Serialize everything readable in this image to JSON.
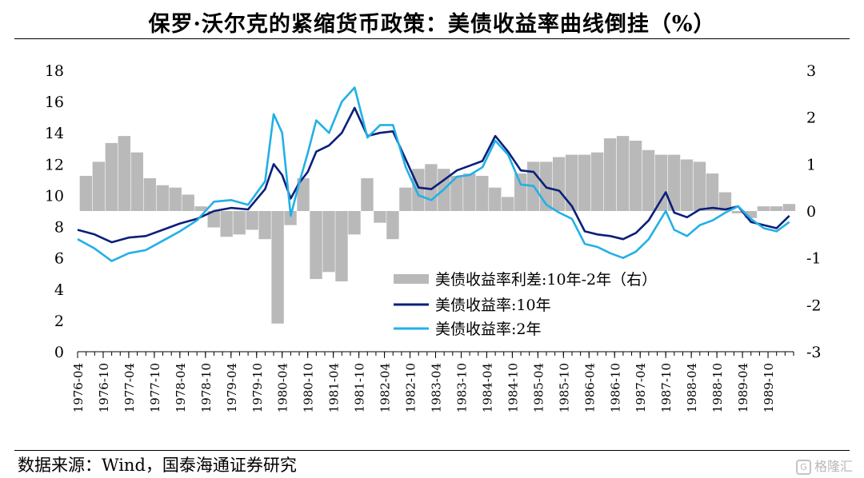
{
  "title": "保罗·沃尔克的紧缩货币政策：美债收益率曲线倒挂（%）",
  "source": "数据来源：Wind，国泰海通证券研究",
  "watermark": "格隆汇",
  "chart_data": {
    "type": "line",
    "x_start": "1976-04",
    "x_end": "1990-04",
    "x_tick_labels": [
      "1976-04",
      "1976-10",
      "1977-04",
      "1977-10",
      "1978-04",
      "1978-10",
      "1979-04",
      "1979-10",
      "1980-04",
      "1980-10",
      "1981-04",
      "1981-10",
      "1982-04",
      "1982-10",
      "1983-04",
      "1983-10",
      "1984-04",
      "1984-10",
      "1985-04",
      "1985-10",
      "1986-04",
      "1986-10",
      "1987-04",
      "1987-10",
      "1988-04",
      "1988-10",
      "1989-04",
      "1989-10"
    ],
    "y_left": {
      "ticks": [
        0,
        2,
        4,
        6,
        8,
        10,
        12,
        14,
        16,
        18
      ],
      "lim": [
        0,
        18
      ]
    },
    "y_right": {
      "ticks": [
        3,
        2,
        1,
        0,
        -1,
        -2,
        -3
      ],
      "lim": [
        -3,
        3
      ]
    },
    "legend_position": "bottom-center",
    "series": [
      {
        "name": "美债收益率利差:10年-2年（右）",
        "kind": "bar",
        "axis": "right",
        "color": "#b9b9b9",
        "x": [
          "1976-06",
          "1976-09",
          "1976-12",
          "1977-03",
          "1977-06",
          "1977-09",
          "1977-12",
          "1978-03",
          "1978-06",
          "1978-09",
          "1978-12",
          "1979-03",
          "1979-06",
          "1979-09",
          "1979-12",
          "1980-03",
          "1980-06",
          "1980-09",
          "1980-12",
          "1981-03",
          "1981-06",
          "1981-09",
          "1981-12",
          "1982-03",
          "1982-06",
          "1982-09",
          "1982-12",
          "1983-03",
          "1983-06",
          "1983-09",
          "1983-12",
          "1984-03",
          "1984-06",
          "1984-09",
          "1984-12",
          "1985-03",
          "1985-06",
          "1985-09",
          "1985-12",
          "1986-03",
          "1986-06",
          "1986-09",
          "1986-12",
          "1987-03",
          "1987-06",
          "1987-09",
          "1987-12",
          "1988-03",
          "1988-06",
          "1988-09",
          "1988-12",
          "1989-03",
          "1989-06",
          "1989-09",
          "1989-12",
          "1990-03"
        ],
        "values": [
          0.75,
          1.05,
          1.45,
          1.6,
          1.25,
          0.7,
          0.55,
          0.5,
          0.35,
          0.1,
          -0.35,
          -0.55,
          -0.5,
          -0.4,
          -0.6,
          -2.4,
          -0.3,
          0.7,
          -1.45,
          -1.3,
          -1.5,
          -0.5,
          0.7,
          -0.25,
          -0.6,
          0.5,
          0.9,
          1.0,
          0.9,
          0.75,
          0.8,
          0.75,
          0.5,
          0.3,
          0.8,
          1.05,
          1.05,
          1.15,
          1.2,
          1.2,
          1.25,
          1.55,
          1.6,
          1.5,
          1.3,
          1.2,
          1.2,
          1.1,
          1.05,
          0.8,
          0.4,
          -0.05,
          -0.15,
          0.1,
          0.1,
          0.15
        ]
      },
      {
        "name": "美债收益率:10年",
        "kind": "line",
        "axis": "left",
        "color": "#0b1f7a",
        "x": [
          "1976-04",
          "1976-08",
          "1976-12",
          "1977-04",
          "1977-08",
          "1977-12",
          "1978-04",
          "1978-08",
          "1978-12",
          "1979-04",
          "1979-08",
          "1979-12",
          "1980-02",
          "1980-04",
          "1980-06",
          "1980-08",
          "1980-10",
          "1980-12",
          "1981-03",
          "1981-06",
          "1981-09",
          "1981-12",
          "1982-03",
          "1982-06",
          "1982-09",
          "1982-12",
          "1983-03",
          "1983-06",
          "1983-09",
          "1983-12",
          "1984-03",
          "1984-06",
          "1984-09",
          "1984-12",
          "1985-03",
          "1985-06",
          "1985-09",
          "1985-12",
          "1986-03",
          "1986-06",
          "1986-09",
          "1986-12",
          "1987-03",
          "1987-06",
          "1987-10",
          "1987-12",
          "1988-03",
          "1988-06",
          "1988-09",
          "1988-12",
          "1989-03",
          "1989-06",
          "1989-09",
          "1989-12",
          "1990-03"
        ],
        "values": [
          7.8,
          7.5,
          7.0,
          7.3,
          7.4,
          7.8,
          8.2,
          8.5,
          9.0,
          9.2,
          9.1,
          10.4,
          12.0,
          11.3,
          9.8,
          10.8,
          11.5,
          12.8,
          13.2,
          14.0,
          15.6,
          13.8,
          14.0,
          14.1,
          12.3,
          10.5,
          10.4,
          11.0,
          11.6,
          11.9,
          12.2,
          13.8,
          12.8,
          11.6,
          11.5,
          10.5,
          10.3,
          9.3,
          7.7,
          7.5,
          7.4,
          7.2,
          7.6,
          8.4,
          10.2,
          8.9,
          8.6,
          9.1,
          9.2,
          9.1,
          9.3,
          8.3,
          8.1,
          7.9,
          8.7
        ]
      },
      {
        "name": "美债收益率:2年",
        "kind": "line",
        "axis": "left",
        "color": "#22b0e6",
        "x": [
          "1976-04",
          "1976-08",
          "1976-12",
          "1977-04",
          "1977-08",
          "1977-12",
          "1978-04",
          "1978-08",
          "1978-12",
          "1979-04",
          "1979-08",
          "1979-12",
          "1980-02",
          "1980-04",
          "1980-06",
          "1980-08",
          "1980-10",
          "1980-12",
          "1981-03",
          "1981-06",
          "1981-09",
          "1981-12",
          "1982-03",
          "1982-06",
          "1982-09",
          "1982-12",
          "1983-03",
          "1983-06",
          "1983-09",
          "1983-12",
          "1984-03",
          "1984-06",
          "1984-09",
          "1984-12",
          "1985-03",
          "1985-06",
          "1985-09",
          "1985-12",
          "1986-03",
          "1986-06",
          "1986-09",
          "1986-12",
          "1987-03",
          "1987-06",
          "1987-10",
          "1987-12",
          "1988-03",
          "1988-06",
          "1988-09",
          "1988-12",
          "1989-03",
          "1989-06",
          "1989-09",
          "1989-12",
          "1990-03"
        ],
        "values": [
          7.2,
          6.6,
          5.8,
          6.3,
          6.5,
          7.1,
          7.7,
          8.4,
          9.6,
          9.7,
          9.4,
          10.9,
          15.2,
          14.0,
          8.7,
          10.8,
          12.7,
          14.8,
          14.0,
          16.0,
          16.9,
          13.7,
          14.5,
          14.5,
          11.8,
          10.0,
          9.7,
          10.4,
          11.2,
          11.3,
          11.8,
          13.5,
          12.6,
          10.7,
          10.6,
          9.4,
          8.9,
          8.5,
          6.9,
          6.7,
          6.3,
          6.0,
          6.4,
          7.2,
          9.0,
          7.8,
          7.4,
          8.1,
          8.4,
          8.9,
          9.3,
          8.5,
          7.9,
          7.7,
          8.3
        ]
      }
    ]
  }
}
